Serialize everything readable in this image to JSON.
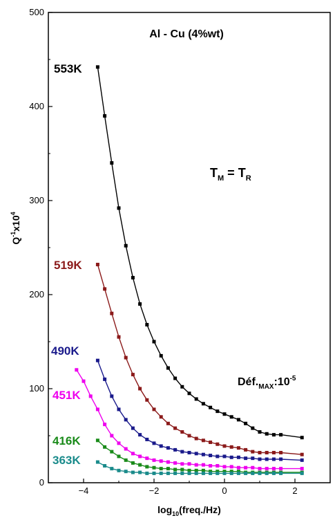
{
  "chart_data": {
    "type": "line",
    "title": "Al - Cu (4%wt)",
    "xlabel_main": "log",
    "xlabel_sub": "10",
    "xlabel_rest": "(freq./Hz)",
    "ylabel_main": "Q",
    "ylabel_sup1": "-1",
    "ylabel_mid": "x10",
    "ylabel_sup2": "4",
    "xlim": [
      -5,
      3
    ],
    "ylim": [
      0,
      500
    ],
    "xticks": [
      -4,
      -2,
      0,
      2
    ],
    "yticks": [
      0,
      100,
      200,
      300,
      400,
      500
    ],
    "annotation_tm_main": "T",
    "annotation_tm_sub": "M",
    "annotation_eq": " = ",
    "annotation_tr_main": "T",
    "annotation_tr_sub": "R",
    "annotation_def_main": "Déf.",
    "annotation_def_sub": "MAX",
    "annotation_def_rest": ":10",
    "annotation_def_sup": "-5",
    "series": [
      {
        "name": "553K",
        "color": "#000000",
        "x": [
          -3.6,
          -3.4,
          -3.2,
          -3.0,
          -2.8,
          -2.6,
          -2.4,
          -2.2,
          -2.0,
          -1.8,
          -1.6,
          -1.4,
          -1.2,
          -1.0,
          -0.8,
          -0.6,
          -0.4,
          -0.2,
          0.0,
          0.2,
          0.4,
          0.6,
          0.8,
          1.0,
          1.2,
          1.4,
          1.6,
          2.2
        ],
        "y": [
          442,
          390,
          340,
          292,
          252,
          218,
          190,
          168,
          150,
          135,
          122,
          111,
          102,
          95,
          89,
          84,
          80,
          76,
          73,
          70,
          67,
          63,
          58,
          54,
          52,
          51,
          51,
          48
        ]
      },
      {
        "name": "519K",
        "color": "#8b1a1a",
        "x": [
          -3.6,
          -3.4,
          -3.2,
          -3.0,
          -2.8,
          -2.6,
          -2.4,
          -2.2,
          -2.0,
          -1.8,
          -1.6,
          -1.4,
          -1.2,
          -1.0,
          -0.8,
          -0.6,
          -0.4,
          -0.2,
          0.0,
          0.2,
          0.4,
          0.6,
          0.8,
          1.0,
          1.2,
          1.4,
          1.6,
          2.2
        ],
        "y": [
          232,
          206,
          180,
          155,
          133,
          115,
          100,
          88,
          78,
          70,
          63,
          58,
          54,
          50,
          47,
          45,
          43,
          41,
          39,
          38,
          37,
          35,
          33,
          32,
          32,
          32,
          32,
          30
        ]
      },
      {
        "name": "490K",
        "color": "#1a1a8b",
        "x": [
          -3.6,
          -3.4,
          -3.2,
          -3.0,
          -2.8,
          -2.6,
          -2.4,
          -2.2,
          -2.0,
          -1.8,
          -1.6,
          -1.4,
          -1.2,
          -1.0,
          -0.8,
          -0.6,
          -0.4,
          -0.2,
          0.0,
          0.2,
          0.4,
          0.6,
          0.8,
          1.0,
          1.2,
          1.4,
          1.6,
          2.2
        ],
        "y": [
          130,
          110,
          92,
          78,
          67,
          58,
          51,
          46,
          42,
          39,
          37,
          35,
          33,
          32,
          31,
          30,
          29,
          28,
          28,
          27,
          27,
          26,
          26,
          25,
          25,
          25,
          25,
          24
        ]
      },
      {
        "name": "451K",
        "color": "#ee00ee",
        "x": [
          -4.2,
          -4.0,
          -3.8,
          -3.6,
          -3.4,
          -3.2,
          -3.0,
          -2.8,
          -2.6,
          -2.4,
          -2.2,
          -2.0,
          -1.8,
          -1.6,
          -1.4,
          -1.2,
          -1.0,
          -0.8,
          -0.6,
          -0.4,
          -0.2,
          0.0,
          0.2,
          0.4,
          0.6,
          0.8,
          1.0,
          1.2,
          1.4,
          1.6,
          2.2
        ],
        "y": [
          120,
          108,
          92,
          78,
          62,
          50,
          42,
          36,
          31,
          28,
          26,
          24,
          23,
          22,
          21,
          20,
          20,
          19,
          19,
          18,
          18,
          17,
          17,
          16,
          16,
          16,
          15,
          15,
          15,
          15,
          15
        ]
      },
      {
        "name": "416K",
        "color": "#1a8b1a",
        "x": [
          -3.6,
          -3.4,
          -3.2,
          -3.0,
          -2.8,
          -2.6,
          -2.4,
          -2.2,
          -2.0,
          -1.8,
          -1.6,
          -1.4,
          -1.2,
          -1.0,
          -0.8,
          -0.6,
          -0.4,
          -0.2,
          0.0,
          0.2,
          0.4,
          0.6,
          0.8,
          1.0,
          1.2,
          1.4,
          1.6,
          2.2
        ],
        "y": [
          45,
          38,
          33,
          28,
          24,
          21,
          19,
          17,
          16,
          15,
          15,
          14,
          14,
          13,
          13,
          13,
          12,
          12,
          12,
          12,
          12,
          11,
          11,
          11,
          11,
          11,
          11,
          11
        ]
      },
      {
        "name": "363K",
        "color": "#1a8b8b",
        "x": [
          -3.6,
          -3.4,
          -3.2,
          -3.0,
          -2.8,
          -2.6,
          -2.4,
          -2.2,
          -2.0,
          -1.8,
          -1.6,
          -1.4,
          -1.2,
          -1.0,
          -0.8,
          -0.6,
          -0.4,
          -0.2,
          0.0,
          0.2,
          0.4,
          0.6,
          0.8,
          1.0,
          1.2,
          1.4,
          1.6,
          2.2
        ],
        "y": [
          22,
          18,
          15,
          13,
          12,
          11,
          11,
          10,
          10,
          10,
          10,
          10,
          10,
          10,
          10,
          10,
          10,
          10,
          10,
          10,
          10,
          10,
          10,
          10,
          10,
          10,
          10,
          10
        ]
      }
    ],
    "grid": false,
    "legend": "inline-labels"
  }
}
